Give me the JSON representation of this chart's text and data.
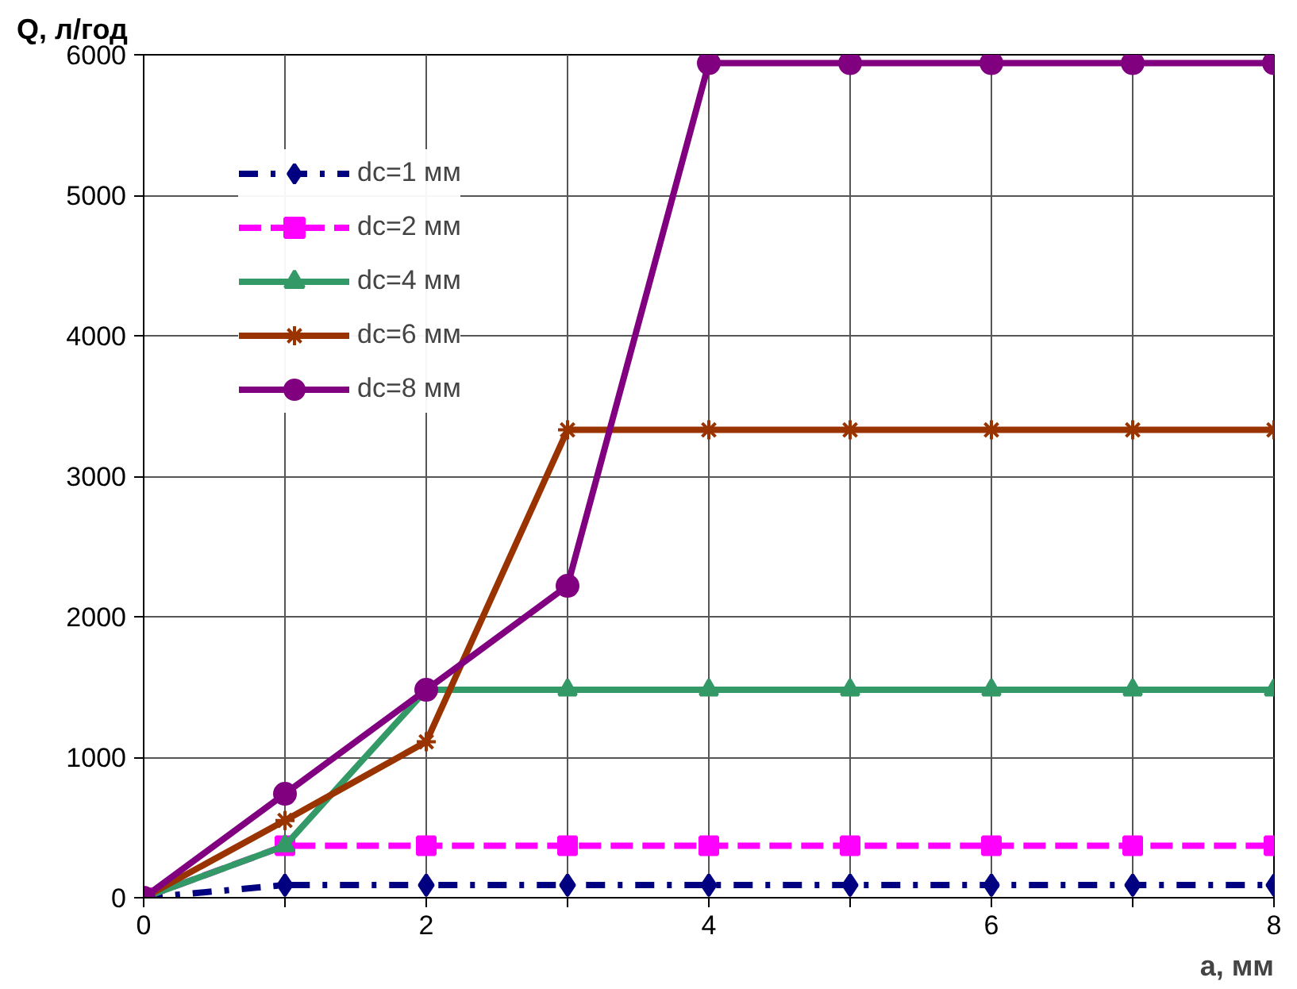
{
  "chart_data": {
    "type": "line",
    "xlabel": "а, мм",
    "ylabel": "Q, л/год",
    "x": [
      0,
      1,
      2,
      3,
      4,
      5,
      6,
      7,
      8
    ],
    "series": [
      {
        "name": "dc=1 мм",
        "color": "#000080",
        "marker": "diamond",
        "line_style": "dashdot",
        "values": [
          0,
          90,
          90,
          90,
          90,
          90,
          90,
          90,
          90
        ]
      },
      {
        "name": "dc=2 мм",
        "color": "#ff00ff",
        "marker": "square",
        "line_style": "dashed",
        "values": [
          0,
          370,
          370,
          370,
          370,
          370,
          370,
          370,
          370
        ]
      },
      {
        "name": "dc=4 мм",
        "color": "#339966",
        "marker": "triangle",
        "line_style": "solid",
        "values": [
          0,
          370,
          1480,
          1480,
          1480,
          1480,
          1480,
          1480,
          1480
        ]
      },
      {
        "name": "dc=6 мм",
        "color": "#993300",
        "marker": "cross",
        "line_style": "solid",
        "values": [
          0,
          550,
          1110,
          3330,
          3330,
          3330,
          3330,
          3330,
          3330
        ]
      },
      {
        "name": "dc=8 мм",
        "color": "#800080",
        "marker": "circle",
        "line_style": "solid",
        "values": [
          0,
          740,
          1480,
          2220,
          5940,
          5940,
          5940,
          5940,
          5940
        ]
      }
    ],
    "xlim": [
      0,
      8
    ],
    "ylim": [
      0,
      6000
    ],
    "xticks": [
      0,
      {
        "value": 1,
        "label": null
      },
      2,
      {
        "value": 3,
        "label": null
      },
      4,
      {
        "value": 5,
        "label": null
      },
      6,
      {
        "value": 7,
        "label": null
      },
      8
    ],
    "yticks": [
      0,
      1000,
      2000,
      3000,
      4000,
      5000,
      6000
    ],
    "grid": true,
    "legend": "top left"
  }
}
